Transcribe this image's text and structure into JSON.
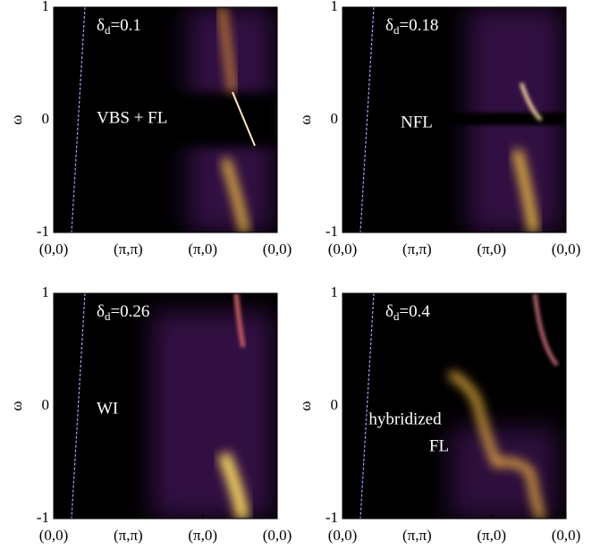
{
  "chart_data": [
    {
      "type": "heatmap",
      "ylabel": "ω",
      "ylim": [
        -1,
        1
      ],
      "yticks": [
        -1,
        0,
        1
      ],
      "categories": [
        "(0,0)",
        "(π,π)",
        "(π,0)",
        "(0,0)"
      ],
      "label_symbol": "δ",
      "label_sub": "d",
      "label_rest": "=0.1",
      "annotation": [
        "VBS + FL"
      ]
    },
    {
      "type": "heatmap",
      "ylabel": "ω",
      "ylim": [
        -1,
        1
      ],
      "yticks": [
        -1,
        0,
        1
      ],
      "categories": [
        "(0,0)",
        "(π,π)",
        "(π,0)",
        "(0,0)"
      ],
      "label_symbol": "δ",
      "label_sub": "d",
      "label_rest": "=0.18",
      "annotation": [
        "NFL"
      ]
    },
    {
      "type": "heatmap",
      "ylabel": "ω",
      "ylim": [
        -1,
        1
      ],
      "yticks": [
        -1,
        0,
        1
      ],
      "categories": [
        "(0,0)",
        "(π,π)",
        "(π,0)",
        "(0,0)"
      ],
      "label_symbol": "δ",
      "label_sub": "d",
      "label_rest": "=0.26",
      "annotation": [
        "WI"
      ]
    },
    {
      "type": "heatmap",
      "ylabel": "ω",
      "ylim": [
        -1,
        1
      ],
      "yticks": [
        -1,
        0,
        1
      ],
      "categories": [
        "(0,0)",
        "(π,π)",
        "(π,0)",
        "(0,0)"
      ],
      "label_symbol": "δ",
      "label_sub": "d",
      "label_rest": "=0.4",
      "annotation": [
        "hybridized",
        "FL"
      ]
    }
  ]
}
